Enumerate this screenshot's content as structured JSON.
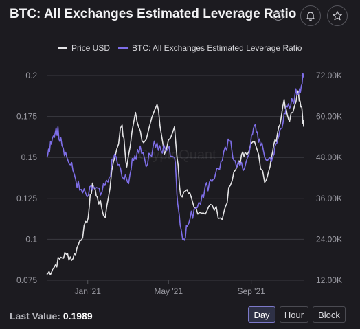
{
  "header": {
    "title": "BTC: All Exchanges Estimated Leverage Ratio",
    "help_glyph": "?",
    "icons": [
      "question-circle-icon",
      "bell-icon",
      "star-icon"
    ]
  },
  "footer": {
    "last_value_label": "Last Value:",
    "last_value": "0.1989",
    "range_buttons": [
      "Day",
      "Hour",
      "Block"
    ],
    "active_range": "Day"
  },
  "watermark": "CryptoQuant",
  "colors": {
    "background": "#1c1b20",
    "price_line": "#e4e4e6",
    "leverage_line": "#7e6ee8",
    "grid": "#3a3a40"
  },
  "chart_data": {
    "type": "line",
    "legend": [
      "Price USD",
      "BTC: All Exchanges Estimated Leverage Ratio"
    ],
    "legend_placement": "top-center",
    "x_ticks": [
      "Jan '21",
      "May '21",
      "Sep '21"
    ],
    "x_range": [
      "2020-11-01",
      "2021-11-18"
    ],
    "left_axis": {
      "ticks": [
        "0.075",
        "0.1",
        "0.125",
        "0.15",
        "0.175",
        "0.2"
      ],
      "range": [
        0.075,
        0.2
      ]
    },
    "right_axis": {
      "ticks": [
        "12.00K",
        "24.00K",
        "36.00K",
        "48.00K",
        "60.00K",
        "72.00K"
      ],
      "range": [
        12000,
        72000
      ]
    },
    "grid": true,
    "series": [
      {
        "name": "Price USD",
        "axis": "right",
        "points": [
          [
            "2020-11-01",
            13700
          ],
          [
            "2020-11-10",
            15300
          ],
          [
            "2020-11-20",
            18200
          ],
          [
            "2020-11-30",
            19600
          ],
          [
            "2020-12-10",
            18300
          ],
          [
            "2020-12-20",
            23500
          ],
          [
            "2020-12-31",
            29000
          ],
          [
            "2021-01-08",
            40500
          ],
          [
            "2021-01-15",
            36500
          ],
          [
            "2021-01-27",
            30400
          ],
          [
            "2021-02-08",
            46500
          ],
          [
            "2021-02-21",
            57500
          ],
          [
            "2021-02-28",
            45200
          ],
          [
            "2021-03-13",
            61200
          ],
          [
            "2021-03-25",
            52300
          ],
          [
            "2021-04-14",
            63500
          ],
          [
            "2021-04-25",
            49000
          ],
          [
            "2021-05-10",
            57000
          ],
          [
            "2021-05-19",
            37000
          ],
          [
            "2021-05-31",
            37300
          ],
          [
            "2021-06-08",
            33400
          ],
          [
            "2021-06-22",
            31700
          ],
          [
            "2021-07-05",
            34000
          ],
          [
            "2021-07-20",
            29800
          ],
          [
            "2021-08-01",
            39800
          ],
          [
            "2021-08-14",
            47000
          ],
          [
            "2021-08-23",
            49500
          ],
          [
            "2021-09-06",
            52600
          ],
          [
            "2021-09-21",
            40700
          ],
          [
            "2021-10-01",
            48100
          ],
          [
            "2021-10-10",
            55000
          ],
          [
            "2021-10-20",
            65000
          ],
          [
            "2021-10-28",
            58500
          ],
          [
            "2021-11-09",
            67500
          ],
          [
            "2021-11-15",
            63000
          ],
          [
            "2021-11-18",
            57000
          ]
        ]
      },
      {
        "name": "BTC: All Exchanges Estimated Leverage Ratio",
        "axis": "left",
        "points": [
          [
            "2020-11-01",
            0.15
          ],
          [
            "2020-11-08",
            0.158
          ],
          [
            "2020-11-15",
            0.168
          ],
          [
            "2020-11-22",
            0.162
          ],
          [
            "2020-12-01",
            0.15
          ],
          [
            "2020-12-10",
            0.142
          ],
          [
            "2020-12-20",
            0.13
          ],
          [
            "2020-12-31",
            0.126
          ],
          [
            "2021-01-10",
            0.132
          ],
          [
            "2021-01-20",
            0.127
          ],
          [
            "2021-01-31",
            0.135
          ],
          [
            "2021-02-10",
            0.152
          ],
          [
            "2021-02-21",
            0.138
          ],
          [
            "2021-03-01",
            0.135
          ],
          [
            "2021-03-10",
            0.148
          ],
          [
            "2021-03-20",
            0.157
          ],
          [
            "2021-03-31",
            0.146
          ],
          [
            "2021-04-10",
            0.16
          ],
          [
            "2021-04-20",
            0.154
          ],
          [
            "2021-04-30",
            0.155
          ],
          [
            "2021-05-10",
            0.15
          ],
          [
            "2021-05-16",
            0.118
          ],
          [
            "2021-05-22",
            0.1
          ],
          [
            "2021-05-29",
            0.108
          ],
          [
            "2021-06-08",
            0.118
          ],
          [
            "2021-06-20",
            0.127
          ],
          [
            "2021-07-01",
            0.135
          ],
          [
            "2021-07-10",
            0.14
          ],
          [
            "2021-07-20",
            0.148
          ],
          [
            "2021-07-31",
            0.16
          ],
          [
            "2021-08-08",
            0.148
          ],
          [
            "2021-08-20",
            0.142
          ],
          [
            "2021-08-31",
            0.158
          ],
          [
            "2021-09-07",
            0.17
          ],
          [
            "2021-09-15",
            0.157
          ],
          [
            "2021-09-25",
            0.148
          ],
          [
            "2021-10-05",
            0.152
          ],
          [
            "2021-10-12",
            0.163
          ],
          [
            "2021-10-20",
            0.177
          ],
          [
            "2021-10-28",
            0.18
          ],
          [
            "2021-11-05",
            0.188
          ],
          [
            "2021-11-12",
            0.192
          ],
          [
            "2021-11-18",
            0.1989
          ]
        ]
      }
    ]
  }
}
